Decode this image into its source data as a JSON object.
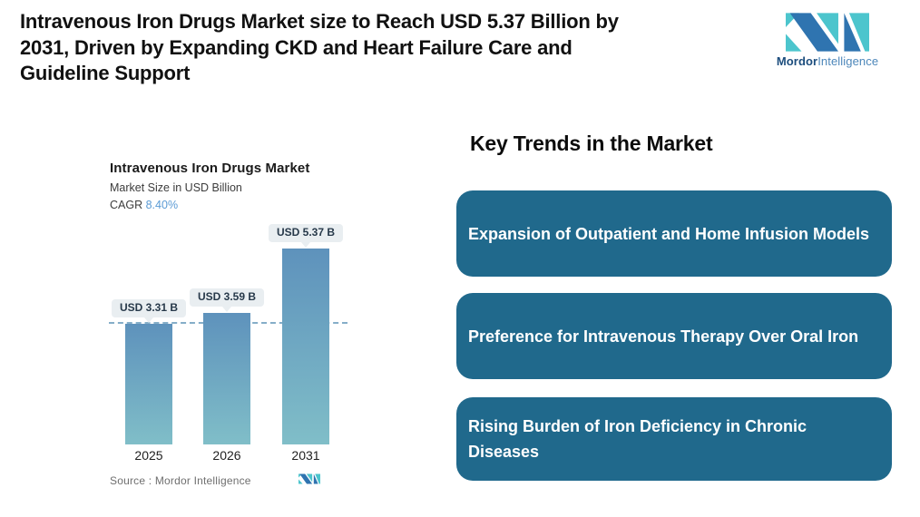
{
  "header": {
    "title_lines": [
      "Intravenous Iron Drugs Market size to Reach USD 5.37 Billion by",
      "2031, Driven by Expanding CKD and Heart Failure Care and",
      "Guideline Support"
    ],
    "logo": {
      "word_bold": "Mordor",
      "word_light": "Intelligence",
      "blue": "#2f74b0",
      "teal": "#4cc5cd"
    }
  },
  "chart": {
    "cagr_label": "CAGR"
  },
  "chart_data": {
    "type": "bar",
    "title": "Intravenous Iron Drugs Market",
    "subtitle": "Market Size in USD Billion",
    "cagr": "8.40%",
    "categories": [
      "2025",
      "2026",
      "2031"
    ],
    "values": [
      3.31,
      3.59,
      5.37
    ],
    "bar_labels": [
      "USD 3.31 B",
      "USD 3.59 B",
      "USD 5.37 B"
    ],
    "ylim": [
      0,
      5.8
    ],
    "reference_line_at_value": 3.31,
    "grid": "off",
    "legend": "none",
    "bar_gradient": [
      "#5e92bc",
      "#80bec8"
    ],
    "source": "Source :  Mordor Intelligence"
  },
  "trends": {
    "heading": "Key Trends in the Market",
    "card_color": "#20698c",
    "cards": [
      {
        "label": "Expansion of Outpatient and Home Infusion Models"
      },
      {
        "label": "Preference for Intravenous Therapy Over Oral Iron"
      },
      {
        "label": "Rising Burden of Iron Deficiency in Chronic Diseases"
      }
    ]
  }
}
